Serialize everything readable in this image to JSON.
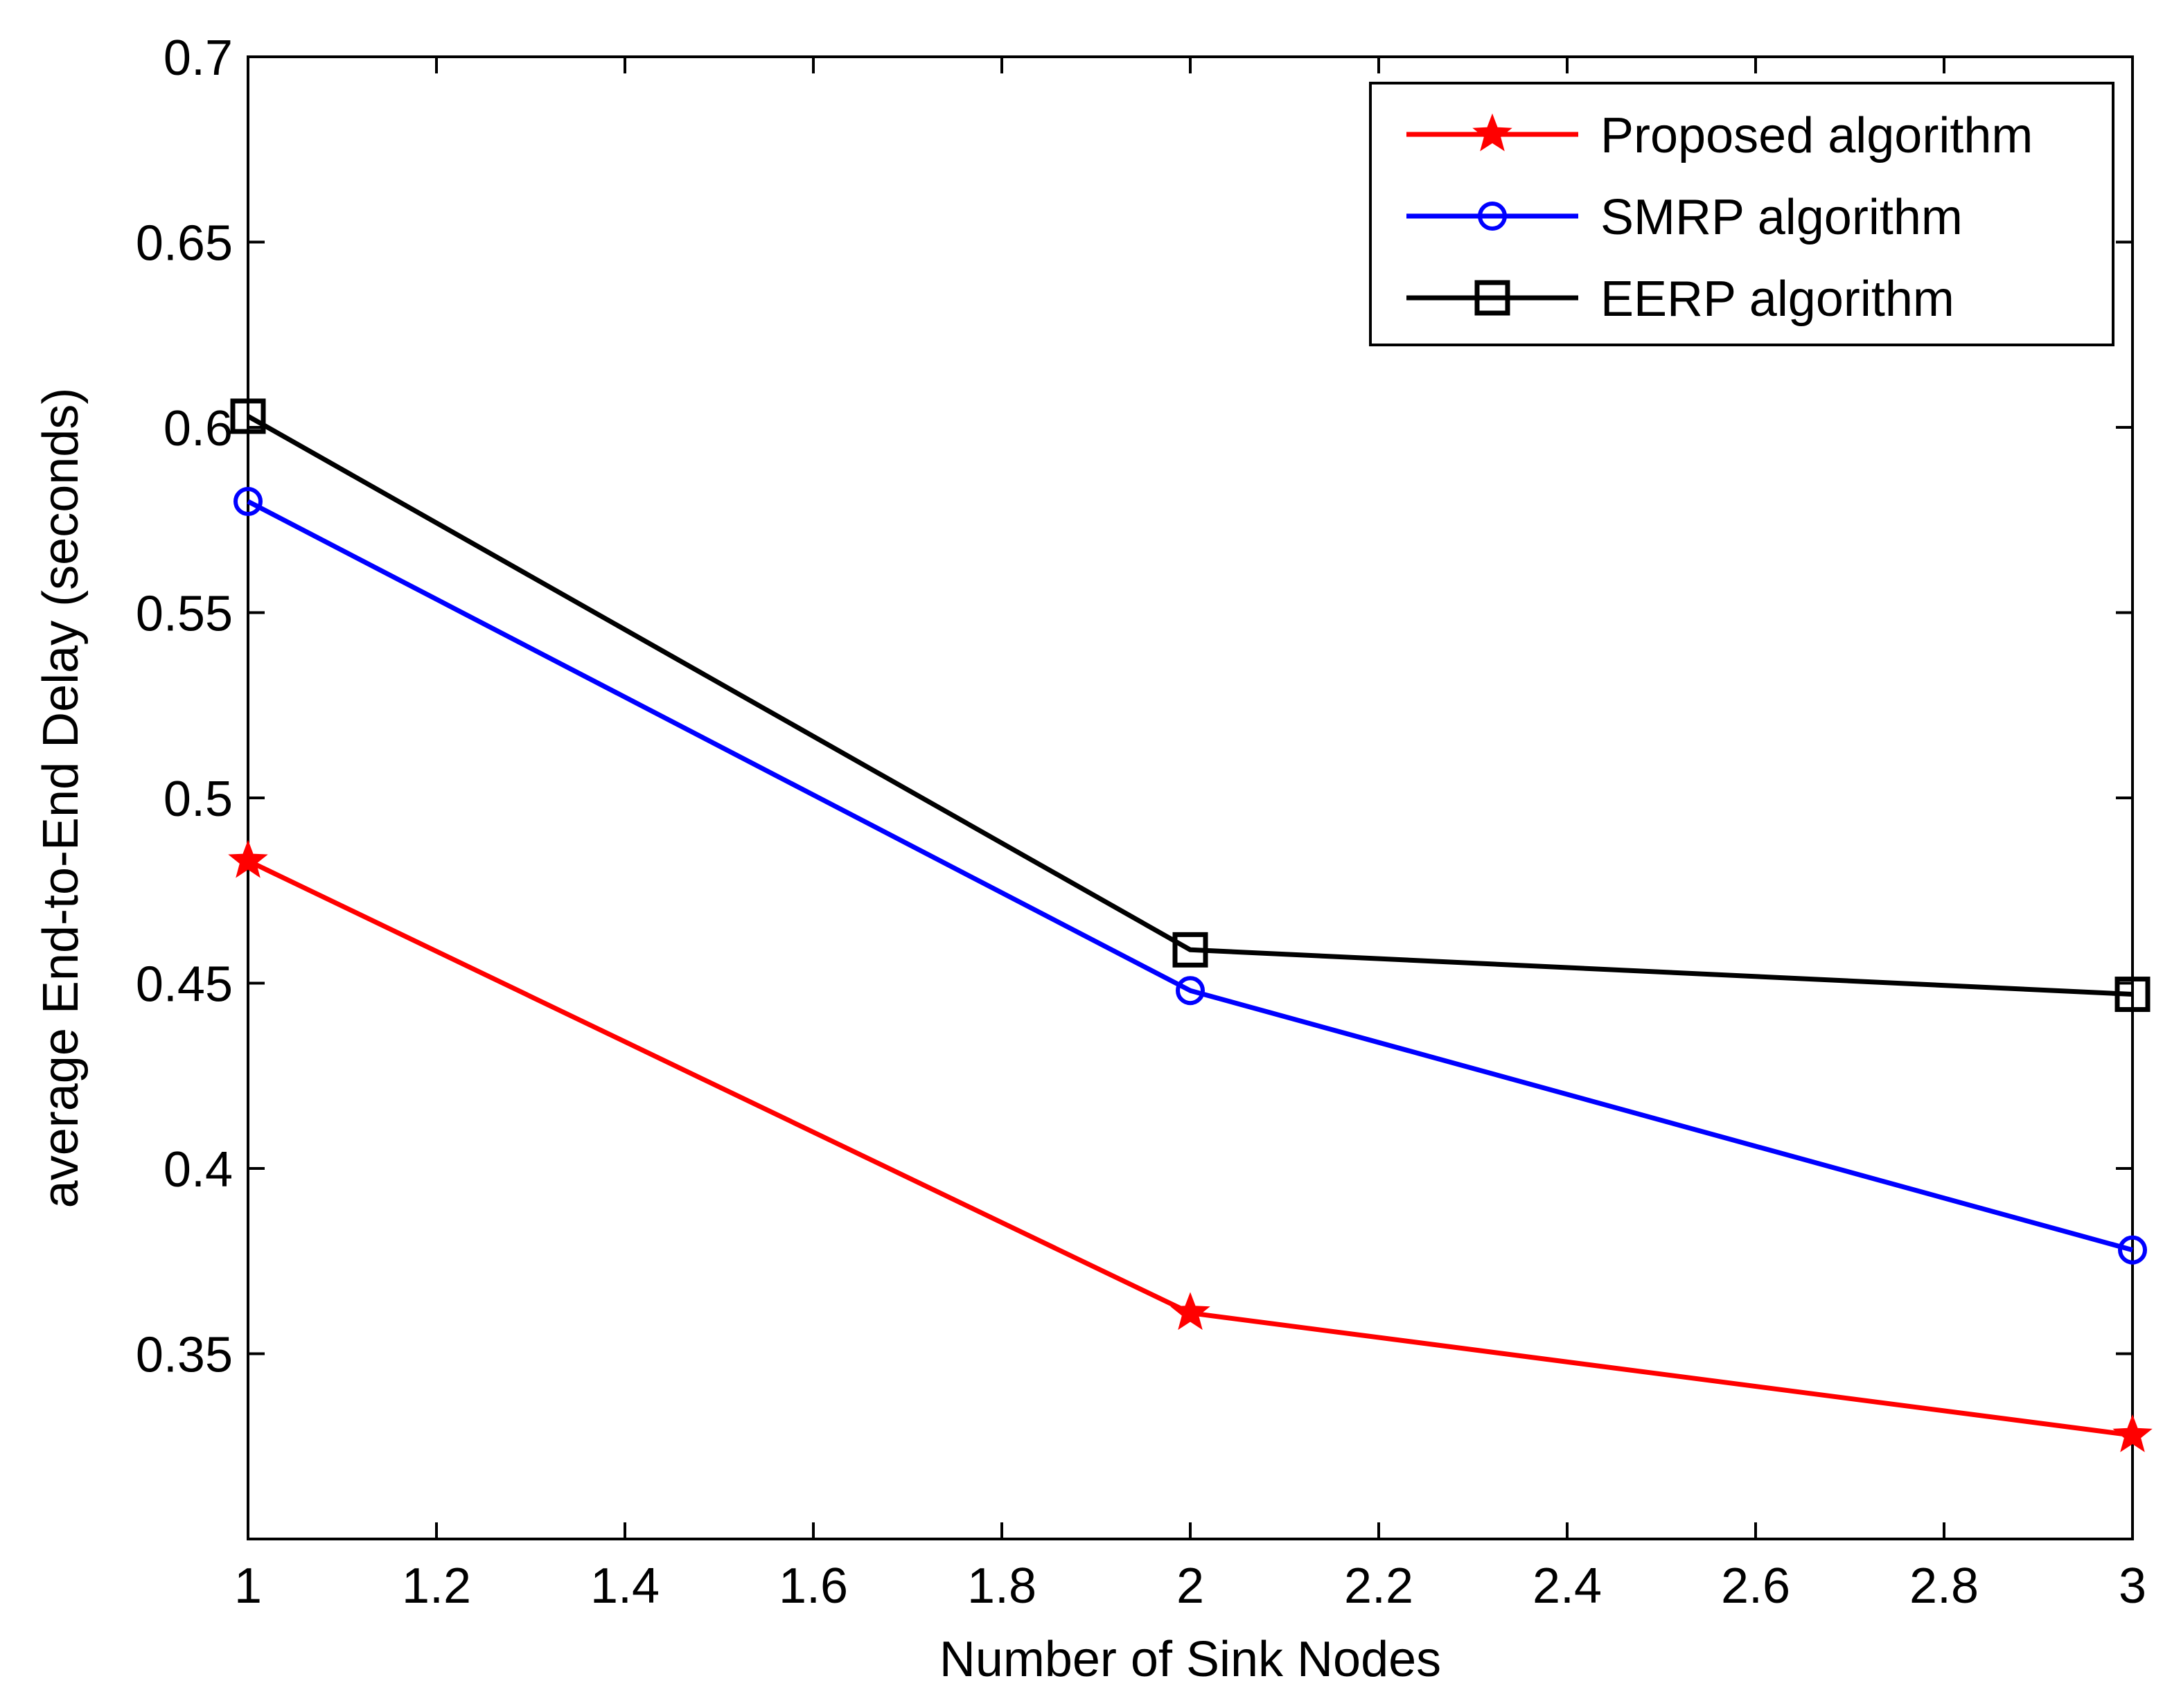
{
  "chart_data": {
    "type": "line",
    "title": "",
    "xlabel": "Number of Sink Nodes",
    "ylabel": "average End-to-End Delay (seconds)",
    "xlim": [
      1,
      3
    ],
    "ylim": [
      0.3,
      0.7
    ],
    "xticks": [
      1,
      1.2,
      1.4,
      1.6,
      1.8,
      2,
      2.2,
      2.4,
      2.6,
      2.8,
      3
    ],
    "xtick_labels": [
      "1",
      "1.2",
      "1.4",
      "1.6",
      "1.8",
      "2",
      "2.2",
      "2.4",
      "2.6",
      "2.8",
      "3"
    ],
    "yticks": [
      0.35,
      0.4,
      0.45,
      0.5,
      0.55,
      0.6,
      0.65,
      0.7
    ],
    "ytick_labels": [
      "0.35",
      "0.4",
      "0.45",
      "0.5",
      "0.55",
      "0.6",
      "0.65",
      "0.7"
    ],
    "grid": false,
    "legend_position": "top-right",
    "x": [
      1,
      2,
      3
    ],
    "series": [
      {
        "name": "Proposed algorithm",
        "values": [
          0.483,
          0.361,
          0.328
        ],
        "color": "#ff0000",
        "marker": "star"
      },
      {
        "name": "SMRP algorithm",
        "values": [
          0.58,
          0.448,
          0.378
        ],
        "color": "#0000ff",
        "marker": "circle"
      },
      {
        "name": "EERP algorithm",
        "values": [
          0.603,
          0.459,
          0.447
        ],
        "color": "#000000",
        "marker": "square"
      }
    ]
  }
}
